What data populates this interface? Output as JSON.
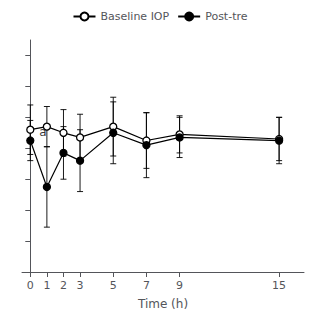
{
  "chart_data": {
    "type": "line",
    "x": [
      0,
      1,
      2,
      3,
      5,
      7,
      9,
      15
    ],
    "xlabel": "Time (h)",
    "series": [
      {
        "name": "Baseline IOP",
        "color": "#000000",
        "marker": "circle_open",
        "values": [
          17.2,
          17.4,
          17.0,
          16.7,
          17.4,
          16.5,
          16.9,
          16.6
        ],
        "errors": [
          1.6,
          1.3,
          1.5,
          1.5,
          1.9,
          1.8,
          1.2,
          1.4
        ]
      },
      {
        "name": "Post-tre",
        "color": "#000000",
        "marker": "circle",
        "values": [
          16.5,
          13.5,
          15.7,
          15.2,
          17.0,
          16.2,
          16.7,
          16.5
        ],
        "errors": [
          1.3,
          2.6,
          1.7,
          2.0,
          2.0,
          2.1,
          1.3,
          1.5
        ]
      }
    ],
    "annotations": [
      {
        "text": "a",
        "x": 1,
        "y": 16.6
      }
    ],
    "xlim": [
      -0.5,
      16.5
    ],
    "xticks": [
      0,
      1,
      2,
      3,
      5,
      7,
      9,
      15
    ],
    "ylim": [
      8,
      23
    ],
    "yticks": [
      8,
      10,
      12,
      14,
      16,
      18,
      20,
      22
    ],
    "grid": false,
    "legend": "top",
    "tick_labels": "x"
  }
}
